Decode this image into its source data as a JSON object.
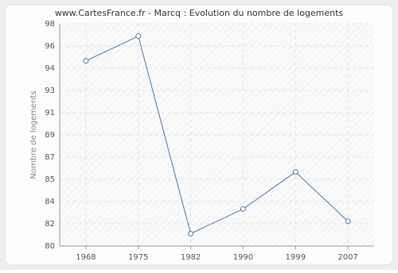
{
  "chart_data": {
    "type": "line",
    "title": "www.CartesFrance.fr - Marcq : Evolution du nombre de logements",
    "y_label": "Nombre de logements",
    "categories": [
      "1968",
      "1975",
      "1982",
      "1990",
      "1999",
      "2007"
    ],
    "values": [
      95,
      97,
      81,
      83,
      86,
      82
    ],
    "color": "#4a77a8",
    "ylim": [
      80,
      98
    ],
    "yticks": [
      80,
      {
        "value": 81.8,
        "label": "82"
      },
      {
        "value": 83.6,
        "label": "84"
      },
      {
        "value": 85.4,
        "label": "85"
      },
      {
        "value": 87.2,
        "label": "87"
      },
      89,
      {
        "value": 90.8,
        "label": "91"
      },
      {
        "value": 92.6,
        "label": "93"
      },
      {
        "value": 94.4,
        "label": "94"
      },
      {
        "value": 96.2,
        "label": "96"
      },
      98
    ],
    "grid": true
  }
}
